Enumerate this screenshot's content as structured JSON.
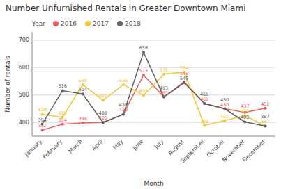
{
  "chart_data": {
    "type": "line",
    "title": "Number Unfurnished Rentals in Greater Downtown Miami",
    "x_label": "Month",
    "y_label": "Number of rentals",
    "legend_title": "Year",
    "categories": [
      "January",
      "February",
      "March",
      "April",
      "May",
      "June",
      "July",
      "August",
      "September",
      "October",
      "November",
      "December"
    ],
    "series": [
      {
        "name": "2016",
        "color": "#e8605a",
        "marker": "circle",
        "values": [
          372,
          394,
          398,
          400,
          430,
          573,
          493,
          548,
          469,
          450,
          437,
          452
        ]
      },
      {
        "name": "2017",
        "color": "#f0c93a",
        "marker": "circle",
        "values": [
          430,
          419,
          538,
          481,
          538,
          499,
          576,
          584,
          389,
          407,
          425,
          387
        ]
      },
      {
        "name": "2018",
        "color": "#606060",
        "marker": "circle",
        "values": [
          394,
          516,
          504,
          400,
          430,
          656,
          493,
          545,
          469,
          450,
          402,
          387
        ]
      }
    ],
    "ylim": [
      350,
      730
    ],
    "yticks": [
      400,
      500,
      600,
      700
    ],
    "grid": true,
    "data_labels": true
  }
}
